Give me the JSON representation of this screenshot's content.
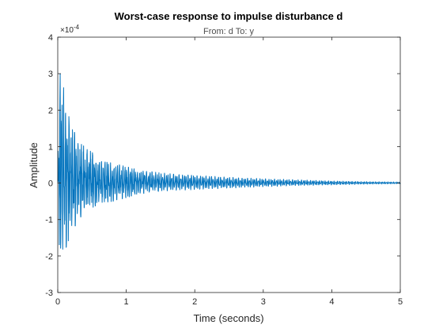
{
  "chart_data": {
    "type": "line",
    "title": "Worst-case response to impulse disturbance d",
    "subtitle": "From: d  To: y",
    "xlabel": "Time (seconds)",
    "ylabel": "Amplitude",
    "y_exponent_label": "×10",
    "y_exponent_value": "-4",
    "xlim": [
      0,
      5
    ],
    "ylim": [
      -3,
      4
    ],
    "y_scale_factor": 0.0001,
    "xticks": [
      0,
      1,
      2,
      3,
      4,
      5
    ],
    "xtick_labels": [
      "0",
      "1",
      "2",
      "3",
      "4",
      "5"
    ],
    "yticks": [
      -3,
      -2,
      -1,
      0,
      1,
      2,
      3,
      4
    ],
    "ytick_labels": [
      "-3",
      "-2",
      "-1",
      "0",
      "1",
      "2",
      "3",
      "4"
    ],
    "grid": false,
    "series": [
      {
        "color": "#0072BD",
        "envelope": {
          "x": [
            0.0,
            0.02,
            0.05,
            0.1,
            0.15,
            0.2,
            0.3,
            0.4,
            0.5,
            0.6,
            0.8,
            1.0,
            1.2,
            1.5,
            2.0,
            2.5,
            3.0,
            3.5,
            4.0,
            4.5,
            5.0
          ],
          "upper": [
            0.0,
            3.25,
            2.9,
            2.5,
            2.1,
            1.5,
            1.25,
            0.95,
            0.85,
            0.6,
            0.55,
            0.45,
            0.35,
            0.28,
            0.22,
            0.16,
            0.12,
            0.09,
            0.06,
            0.04,
            0.03
          ],
          "lower": [
            0.0,
            -2.3,
            -2.0,
            -1.9,
            -1.6,
            -1.4,
            -1.0,
            -0.8,
            -0.7,
            -0.55,
            -0.5,
            -0.4,
            -0.3,
            -0.22,
            -0.18,
            -0.14,
            -0.1,
            -0.07,
            -0.05,
            -0.03,
            -0.02
          ]
        }
      }
    ]
  },
  "colors": {
    "line": "#0072BD",
    "axis": "#262626"
  }
}
